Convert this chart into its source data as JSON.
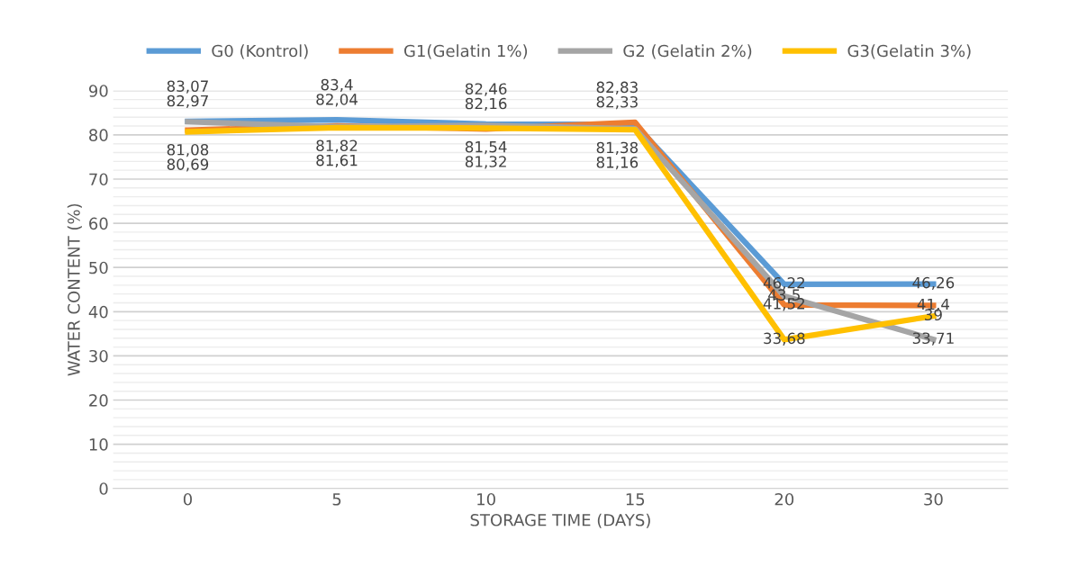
{
  "chart_data": {
    "type": "line",
    "xlabel": "STORAGE TIME (DAYS)",
    "ylabel": "WATER CONTENT (%)",
    "categories": [
      "0",
      "5",
      "10",
      "15",
      "20",
      "30"
    ],
    "series": [
      {
        "name": "G0 (Kontrol)",
        "color": "#5b9bd5",
        "values": [
          83.07,
          83.4,
          82.46,
          82.33,
          46.22,
          46.26
        ],
        "value_labels": [
          "83,07",
          "83,4",
          "82,46",
          "82,33",
          "46,22",
          "46,26"
        ]
      },
      {
        "name": "G1(Gelatin 1%)",
        "color": "#ed7d31",
        "values": [
          81.08,
          82.04,
          81.32,
          82.83,
          41.52,
          41.4
        ],
        "value_labels": [
          "81,08",
          "82,04",
          "81,32",
          "82,83",
          "41,52",
          "41,4"
        ]
      },
      {
        "name": "G2 (Gelatin 2%)",
        "color": "#a5a5a5",
        "values": [
          82.97,
          81.82,
          82.16,
          81.38,
          43.5,
          33.71
        ],
        "value_labels": [
          "82,97",
          "81,82",
          "82,16",
          "81,38",
          "43,5",
          "33,71"
        ]
      },
      {
        "name": "G3(Gelatin 3%)",
        "color": "#ffc000",
        "values": [
          80.69,
          81.61,
          81.54,
          81.16,
          33.68,
          39
        ],
        "value_labels": [
          "80,69",
          "81,61",
          "81,54",
          "81,16",
          "33,68",
          "39"
        ]
      }
    ],
    "ylim": [
      0,
      90
    ],
    "yticks": [
      0,
      10,
      20,
      30,
      40,
      50,
      60,
      70,
      80,
      90
    ],
    "grid": "y",
    "legend": "top",
    "marker": "none",
    "line_style": "solid"
  }
}
